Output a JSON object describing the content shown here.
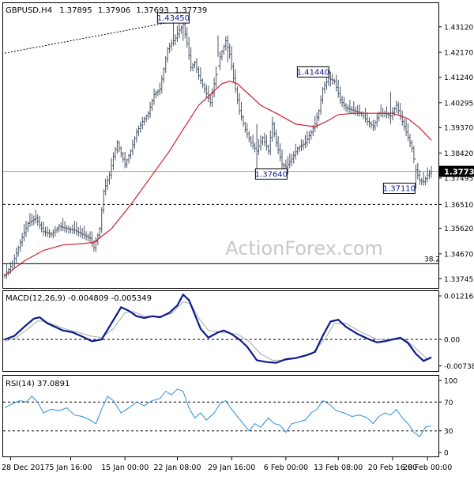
{
  "chart_data": [
    {
      "panel": "price",
      "type": "bar",
      "symbol": "GBPUSD,H4",
      "ohlc": {
        "open": "1.37895",
        "high": "1.37906",
        "low": "1.37693",
        "close": "1.37739"
      },
      "ylim": [
        1.334,
        1.44
      ],
      "yticks": [
        "1.43120",
        "1.42170",
        "1.41240",
        "1.40295",
        "1.39370",
        "1.38420",
        "1.37495",
        "1.36510",
        "1.35620",
        "1.34670",
        "1.33745"
      ],
      "last_price": "1.37739",
      "marked_price": "1.36510",
      "watermark": "ActionForex.com",
      "fib_label": "38.2",
      "fib_level": 1.343,
      "annotations": [
        {
          "text": "1.43450",
          "value": 1.4345
        },
        {
          "text": "1.41440",
          "value": 1.4144
        },
        {
          "text": "1.37640",
          "value": 1.3764
        },
        {
          "text": "1.37110",
          "value": 1.3711
        }
      ],
      "close_path": [
        [
          0,
          1.3388
        ],
        [
          4,
          1.343
        ],
        [
          8,
          1.351
        ],
        [
          12,
          1.358
        ],
        [
          16,
          1.36
        ],
        [
          20,
          1.355
        ],
        [
          24,
          1.354
        ],
        [
          28,
          1.357
        ],
        [
          32,
          1.356
        ],
        [
          36,
          1.3555
        ],
        [
          40,
          1.354
        ],
        [
          44,
          1.3525
        ],
        [
          46,
          1.349
        ],
        [
          49,
          1.356
        ],
        [
          51,
          1.37
        ],
        [
          54,
          1.376
        ],
        [
          56,
          1.383
        ],
        [
          58,
          1.388
        ],
        [
          62,
          1.38
        ],
        [
          65,
          1.385
        ],
        [
          68,
          1.392
        ],
        [
          71,
          1.396
        ],
        [
          74,
          1.399
        ],
        [
          77,
          1.406
        ],
        [
          80,
          1.408
        ],
        [
          84,
          1.423
        ],
        [
          88,
          1.427
        ],
        [
          90,
          1.43
        ],
        [
          92,
          1.432
        ],
        [
          94,
          1.425
        ],
        [
          96,
          1.416
        ],
        [
          98,
          1.418
        ],
        [
          100,
          1.413
        ],
        [
          103,
          1.408
        ],
        [
          106,
          1.403
        ],
        [
          108,
          1.41
        ],
        [
          111,
          1.42
        ],
        [
          114,
          1.426
        ],
        [
          116,
          1.421
        ],
        [
          118,
          1.412
        ],
        [
          121,
          1.4
        ],
        [
          124,
          1.393
        ],
        [
          127,
          1.388
        ],
        [
          130,
          1.385
        ],
        [
          133,
          1.39
        ],
        [
          136,
          1.385
        ],
        [
          138,
          1.395
        ],
        [
          140,
          1.388
        ],
        [
          143,
          1.38
        ],
        [
          145,
          1.379
        ],
        [
          148,
          1.382
        ],
        [
          151,
          1.386
        ],
        [
          155,
          1.388
        ],
        [
          158,
          1.392
        ],
        [
          160,
          1.395
        ],
        [
          162,
          1.4
        ],
        [
          164,
          1.408
        ],
        [
          167,
          1.412
        ],
        [
          170,
          1.411
        ],
        [
          173,
          1.404
        ],
        [
          176,
          1.401
        ],
        [
          180,
          1.4
        ],
        [
          184,
          1.399
        ],
        [
          187,
          1.396
        ],
        [
          190,
          1.394
        ],
        [
          193,
          1.399
        ],
        [
          196,
          1.399
        ],
        [
          199,
          1.398
        ],
        [
          202,
          1.402
        ],
        [
          205,
          1.396
        ],
        [
          208,
          1.39
        ],
        [
          210,
          1.386
        ],
        [
          212,
          1.378
        ],
        [
          214,
          1.374
        ],
        [
          216,
          1.3735
        ],
        [
          218,
          1.376
        ],
        [
          220,
          1.3774
        ]
      ],
      "ma_path": [
        [
          0,
          1.3385
        ],
        [
          10,
          1.344
        ],
        [
          20,
          1.348
        ],
        [
          30,
          1.35
        ],
        [
          40,
          1.3505
        ],
        [
          46,
          1.351
        ],
        [
          55,
          1.356
        ],
        [
          65,
          1.365
        ],
        [
          75,
          1.375
        ],
        [
          85,
          1.385
        ],
        [
          92,
          1.393
        ],
        [
          100,
          1.402
        ],
        [
          106,
          1.406
        ],
        [
          112,
          1.41
        ],
        [
          116,
          1.411
        ],
        [
          120,
          1.41
        ],
        [
          126,
          1.406
        ],
        [
          132,
          1.402
        ],
        [
          140,
          1.399
        ],
        [
          150,
          1.395
        ],
        [
          160,
          1.394
        ],
        [
          166,
          1.396
        ],
        [
          172,
          1.3985
        ],
        [
          180,
          1.399
        ],
        [
          190,
          1.399
        ],
        [
          200,
          1.399
        ],
        [
          208,
          1.397
        ],
        [
          214,
          1.3935
        ],
        [
          220,
          1.389
        ]
      ],
      "dotted_trend": [
        [
          0,
          1.4214
        ],
        [
          91,
          1.4337
        ]
      ],
      "wicks": [
        [
          87,
          1.424,
          1.4345
        ],
        [
          92,
          1.426,
          1.433
        ],
        [
          110,
          1.42,
          1.428
        ],
        [
          115,
          1.418,
          1.428
        ],
        [
          130,
          1.378,
          1.395
        ],
        [
          146,
          1.3764,
          1.383
        ],
        [
          168,
          1.409,
          1.4144
        ],
        [
          199,
          1.395,
          1.407
        ],
        [
          212,
          1.3711,
          1.38
        ]
      ]
    },
    {
      "panel": "macd",
      "type": "line",
      "label": "MACD(12,26,9) -0.004809 -0.005349",
      "ylim": [
        -0.0088,
        0.0135
      ],
      "yticks": [
        "0.012164",
        "0.00",
        "-0.007384"
      ],
      "zero": 0.0,
      "series": [
        {
          "values": [
            [
              0,
              0.0
            ],
            [
              5,
              0.001
            ],
            [
              10,
              0.0035
            ],
            [
              15,
              0.0058
            ],
            [
              18,
              0.0062
            ],
            [
              22,
              0.0045
            ],
            [
              26,
              0.0035
            ],
            [
              30,
              0.0025
            ],
            [
              35,
              0.002
            ],
            [
              40,
              0.0008
            ],
            [
              45,
              -0.0005
            ],
            [
              50,
              0.0
            ],
            [
              55,
              0.0045
            ],
            [
              60,
              0.009
            ],
            [
              64,
              0.008
            ],
            [
              68,
              0.0065
            ],
            [
              72,
              0.006
            ],
            [
              76,
              0.0065
            ],
            [
              80,
              0.0062
            ],
            [
              85,
              0.0075
            ],
            [
              89,
              0.0095
            ],
            [
              92,
              0.0125
            ],
            [
              95,
              0.011
            ],
            [
              98,
              0.007
            ],
            [
              101,
              0.003
            ],
            [
              105,
              0.0005
            ],
            [
              110,
              0.002
            ],
            [
              113,
              0.0025
            ],
            [
              117,
              0.0015
            ],
            [
              121,
              0.0
            ],
            [
              125,
              -0.002
            ],
            [
              130,
              -0.0058
            ],
            [
              135,
              -0.0063
            ],
            [
              140,
              -0.0065
            ],
            [
              145,
              -0.0055
            ],
            [
              150,
              -0.0052
            ],
            [
              155,
              -0.0045
            ],
            [
              160,
              -0.0035
            ],
            [
              164,
              0.001
            ],
            [
              168,
              0.005
            ],
            [
              172,
              0.0055
            ],
            [
              176,
              0.0035
            ],
            [
              182,
              0.0015
            ],
            [
              188,
              0.0
            ],
            [
              192,
              -0.0008
            ],
            [
              196,
              -0.0005
            ],
            [
              200,
              0.0
            ],
            [
              204,
              0.0005
            ],
            [
              208,
              -0.001
            ],
            [
              212,
              -0.004
            ],
            [
              216,
              -0.006
            ],
            [
              220,
              -0.005
            ]
          ]
        },
        {
          "values": [
            [
              0,
              -0.0005
            ],
            [
              6,
              0.0005
            ],
            [
              12,
              0.003
            ],
            [
              17,
              0.0052
            ],
            [
              21,
              0.005
            ],
            [
              26,
              0.004
            ],
            [
              32,
              0.0028
            ],
            [
              38,
              0.002
            ],
            [
              44,
              0.001
            ],
            [
              50,
              0.0005
            ],
            [
              56,
              0.003
            ],
            [
              62,
              0.0075
            ],
            [
              66,
              0.0078
            ],
            [
              72,
              0.0065
            ],
            [
              80,
              0.0065
            ],
            [
              86,
              0.0072
            ],
            [
              92,
              0.0105
            ],
            [
              96,
              0.01
            ],
            [
              100,
              0.006
            ],
            [
              105,
              0.0025
            ],
            [
              112,
              0.002
            ],
            [
              120,
              0.0015
            ],
            [
              126,
              -0.0005
            ],
            [
              132,
              -0.004
            ],
            [
              138,
              -0.0058
            ],
            [
              145,
              -0.0058
            ],
            [
              152,
              -0.005
            ],
            [
              158,
              -0.0042
            ],
            [
              165,
              0.0
            ],
            [
              170,
              0.0045
            ],
            [
              176,
              0.0045
            ],
            [
              184,
              0.002
            ],
            [
              192,
              0.0
            ],
            [
              200,
              -0.0002
            ],
            [
              206,
              0.0002
            ],
            [
              212,
              -0.0025
            ],
            [
              218,
              -0.0055
            ],
            [
              220,
              -0.0053
            ]
          ]
        }
      ]
    },
    {
      "panel": "rsi",
      "type": "line",
      "label": "RSI(14) 37.0891",
      "ylim": [
        0,
        100
      ],
      "yticks": [
        "100",
        "70",
        "30",
        "0"
      ],
      "levels": [
        70,
        30
      ],
      "series": [
        {
          "values": [
            [
              0,
              62
            ],
            [
              4,
              68
            ],
            [
              8,
              72
            ],
            [
              11,
              70
            ],
            [
              14,
              78
            ],
            [
              17,
              70
            ],
            [
              20,
              55
            ],
            [
              24,
              60
            ],
            [
              28,
              58
            ],
            [
              32,
              62
            ],
            [
              36,
              52
            ],
            [
              40,
              50
            ],
            [
              44,
              45
            ],
            [
              47,
              40
            ],
            [
              50,
              60
            ],
            [
              53,
              78
            ],
            [
              56,
              72
            ],
            [
              60,
              55
            ],
            [
              64,
              62
            ],
            [
              68,
              70
            ],
            [
              72,
              65
            ],
            [
              76,
              72
            ],
            [
              80,
              75
            ],
            [
              83,
              85
            ],
            [
              86,
              80
            ],
            [
              89,
              88
            ],
            [
              92,
              85
            ],
            [
              95,
              62
            ],
            [
              98,
              48
            ],
            [
              101,
              55
            ],
            [
              104,
              45
            ],
            [
              108,
              55
            ],
            [
              111,
              68
            ],
            [
              114,
              72
            ],
            [
              117,
              60
            ],
            [
              120,
              50
            ],
            [
              123,
              40
            ],
            [
              126,
              30
            ],
            [
              129,
              40
            ],
            [
              132,
              35
            ],
            [
              136,
              48
            ],
            [
              139,
              40
            ],
            [
              142,
              38
            ],
            [
              145,
              28
            ],
            [
              148,
              40
            ],
            [
              151,
              42
            ],
            [
              155,
              45
            ],
            [
              158,
              55
            ],
            [
              161,
              60
            ],
            [
              164,
              72
            ],
            [
              167,
              68
            ],
            [
              171,
              58
            ],
            [
              175,
              55
            ],
            [
              179,
              50
            ],
            [
              183,
              52
            ],
            [
              187,
              48
            ],
            [
              190,
              40
            ],
            [
              193,
              50
            ],
            [
              196,
              55
            ],
            [
              199,
              52
            ],
            [
              202,
              60
            ],
            [
              205,
              48
            ],
            [
              208,
              40
            ],
            [
              211,
              28
            ],
            [
              214,
              22
            ],
            [
              217,
              35
            ],
            [
              220,
              37
            ]
          ]
        }
      ]
    }
  ],
  "x_axis": {
    "ticks": [
      {
        "label": "28 Dec 2017",
        "i": 3
      },
      {
        "label": "5 Jan 16:00",
        "i": 34
      },
      {
        "label": "15 Jan 00:00",
        "i": 62
      },
      {
        "label": "22 Jan 08:00",
        "i": 89
      },
      {
        "label": "29 Jan 16:00",
        "i": 117
      },
      {
        "label": "6 Feb 00:00",
        "i": 145
      },
      {
        "label": "13 Feb 08:00",
        "i": 172
      },
      {
        "label": "20 Feb 16:00",
        "i": 200
      },
      {
        "label": "28 Feb 00:00",
        "i": 218
      }
    ]
  },
  "colors": {
    "price_bars": "#4a5666",
    "ma": "#d0202a",
    "macd_line": "#0b1a8c",
    "macd_signal": "#a8a8a8",
    "rsi_line": "#2a90e0",
    "grid": "#000000",
    "last_price_bg": "#000000",
    "last_price_fg": "#ffffff"
  }
}
